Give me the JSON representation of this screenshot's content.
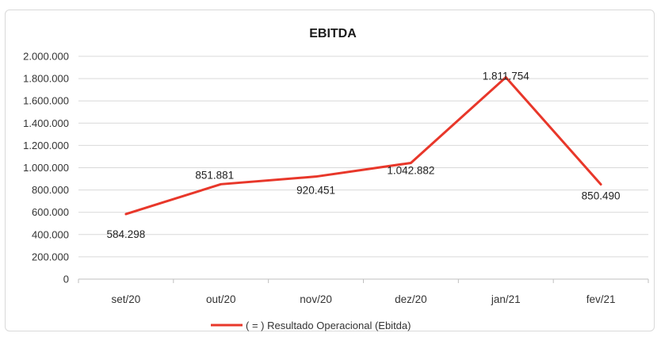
{
  "chart_data": {
    "type": "line",
    "title": "EBITDA",
    "xlabel": "",
    "ylabel": "",
    "categories": [
      "set/20",
      "out/20",
      "nov/20",
      "dez/20",
      "jan/21",
      "fev/21"
    ],
    "series": [
      {
        "name": "( = ) Resultado Operacional (Ebitda)",
        "values": [
          584298,
          851881,
          920451,
          1042882,
          1811754,
          850490
        ],
        "value_labels": [
          "584.298",
          "851.881",
          "920.451",
          "1.042.882",
          "1.811.754",
          "850.490"
        ],
        "color": "#e8372a"
      }
    ],
    "ylim": [
      0,
      2000000
    ],
    "y_ticks": [
      0,
      200000,
      400000,
      600000,
      800000,
      1000000,
      1200000,
      1400000,
      1600000,
      1800000,
      2000000
    ],
    "y_tick_labels": [
      "0",
      "200.000",
      "400.000",
      "600.000",
      "800.000",
      "1.000.000",
      "1.200.000",
      "1.400.000",
      "1.600.000",
      "1.800.000",
      "2.000.000"
    ],
    "grid": true,
    "legend": "bottom",
    "colors": {
      "grid": "#d9d9d9",
      "axis": "#bfbfbf",
      "text": "#333333"
    }
  }
}
